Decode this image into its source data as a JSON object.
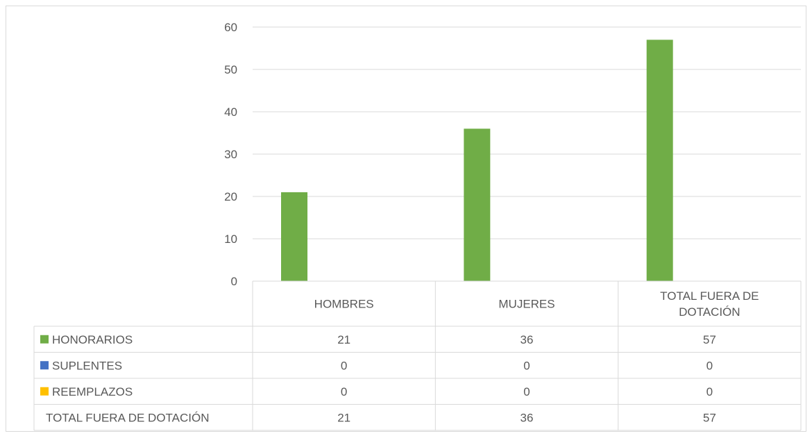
{
  "chart_data": {
    "type": "bar",
    "categories": [
      "HOMBRES",
      "MUJERES",
      "TOTAL FUERA DE DOTACIÓN"
    ],
    "series": [
      {
        "name": "HONORARIOS",
        "values": [
          21,
          36,
          57
        ],
        "color": "#70ad47"
      },
      {
        "name": "SUPLENTES",
        "values": [
          0,
          0,
          0
        ],
        "color": "#4472c4"
      },
      {
        "name": "REEMPLAZOS",
        "values": [
          0,
          0,
          0
        ],
        "color": "#ffc000"
      }
    ],
    "total_row": {
      "label": "TOTAL FUERA DE DOTACIÓN",
      "values": [
        21,
        36,
        57
      ]
    },
    "yticks": [
      0,
      10,
      20,
      30,
      40,
      50,
      60
    ],
    "ylim": [
      0,
      60
    ],
    "grid": true,
    "legend": "data-table",
    "title": "",
    "xlabel": "",
    "ylabel": ""
  }
}
